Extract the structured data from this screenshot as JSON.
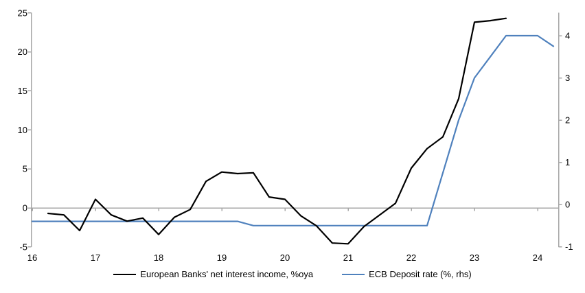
{
  "figure": {
    "background_color": "#FFFFFF",
    "axis_line_color": "#A6A6A6",
    "text_color": "#000000"
  },
  "chart_data": {
    "type": "line",
    "title": "",
    "grid": false,
    "legend_position": "bottom",
    "x_axis": {
      "tick_labels": [
        "16",
        "17",
        "18",
        "19",
        "20",
        "21",
        "22",
        "23",
        "24"
      ],
      "tick_years": [
        2016,
        2017,
        2018,
        2019,
        2020,
        2021,
        2022,
        2023,
        2024
      ],
      "range_years": [
        2016.0,
        2024.33
      ],
      "frequency": "quarterly"
    },
    "left_axis": {
      "ticks": [
        25,
        20,
        15,
        10,
        5,
        0,
        -5
      ],
      "range": [
        -5,
        25
      ]
    },
    "right_axis": {
      "ticks": [
        4,
        3,
        2,
        1,
        0,
        -1
      ],
      "range": [
        -1.07,
        4.42
      ]
    },
    "series": [
      {
        "id": "nii",
        "name": "European Banks' net interest income, %oya",
        "axis": "left",
        "color": "#000000",
        "start": "2016Q2",
        "quarterly_values": [
          -0.7,
          -0.9,
          -2.9,
          1.1,
          -0.9,
          -1.7,
          -1.3,
          -3.4,
          -1.2,
          -0.2,
          3.4,
          4.6,
          4.4,
          4.5,
          1.4,
          1.1,
          -1.0,
          -2.3,
          -4.5,
          -4.6,
          -2.4,
          -0.9,
          0.6,
          5.1,
          7.6,
          9.1,
          14.0,
          23.8,
          24.0,
          24.3
        ]
      },
      {
        "id": "ecb-deposit-rate",
        "name": "ECB Deposit rate (%, rhs)",
        "axis": "right",
        "color": "#4F81BD",
        "start": "2016Q1",
        "quarterly_values": [
          -0.4,
          -0.4,
          -0.4,
          -0.4,
          -0.4,
          -0.4,
          -0.4,
          -0.4,
          -0.4,
          -0.4,
          -0.4,
          -0.4,
          -0.4,
          -0.4,
          -0.5,
          -0.5,
          -0.5,
          -0.5,
          -0.5,
          -0.5,
          -0.5,
          -0.5,
          -0.5,
          -0.5,
          -0.5,
          -0.5,
          0.75,
          2.0,
          3.0,
          3.5,
          4.0,
          4.0,
          4.0,
          3.75
        ]
      }
    ]
  }
}
